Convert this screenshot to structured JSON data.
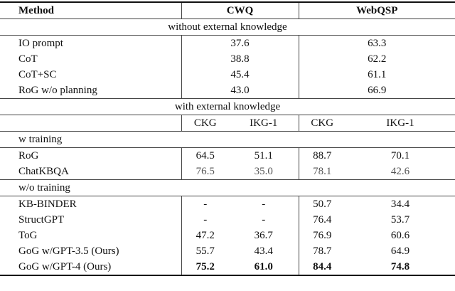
{
  "header": [
    "Method",
    "CWQ",
    "WebQSP"
  ],
  "sections": [
    {
      "title": "without external knowledge",
      "rows": [
        [
          "IO prompt",
          "37.6",
          "63.3"
        ],
        [
          "CoT",
          "38.8",
          "62.2"
        ],
        [
          "CoT+SC",
          "45.4",
          "61.1"
        ],
        [
          "RoG w/o planning",
          "43.0",
          "66.9"
        ]
      ]
    },
    {
      "title": "with external knowledge",
      "subheader": [
        "CKG",
        "IKG-1",
        "CKG",
        "IKG-1"
      ],
      "groups": [
        {
          "title": "w training",
          "rows": [
            [
              "RoG",
              "64.5",
              "51.1",
              "88.7",
              "70.1"
            ],
            [
              "ChatKBQA",
              "76.5",
              "35.0",
              "78.1",
              "42.6"
            ]
          ]
        },
        {
          "title": "w/o training",
          "rows": [
            [
              "KB-BINDER",
              "-",
              "-",
              "50.7",
              "34.4"
            ],
            [
              "StructGPT",
              "-",
              "-",
              "76.4",
              "53.7"
            ],
            [
              "ToG",
              "47.2",
              "36.7",
              "76.9",
              "60.6"
            ],
            [
              "GoG w/GPT-3.5 (Ours)",
              "55.7",
              "43.4",
              "78.7",
              "64.9"
            ],
            [
              "GoG w/GPT-4 (Ours)",
              "75.2",
              "61.0",
              "84.4",
              "74.8"
            ]
          ]
        }
      ]
    }
  ]
}
